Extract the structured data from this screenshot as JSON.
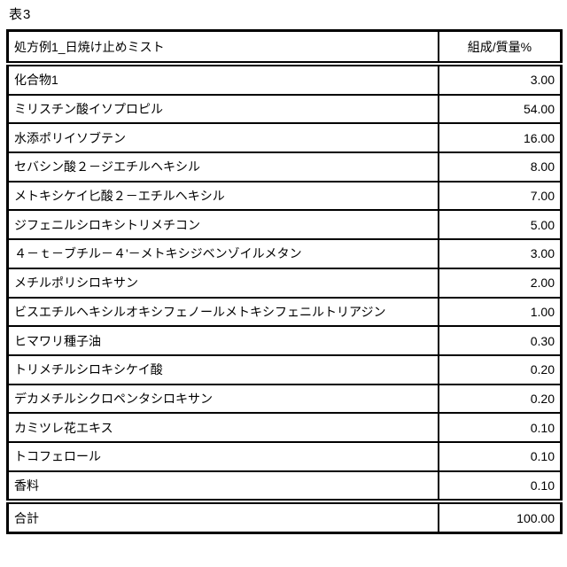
{
  "page": {
    "title": "表3"
  },
  "colors": {
    "background": "#ffffff",
    "text": "#000000",
    "border": "#000000"
  },
  "table": {
    "header": {
      "label": "処方例1_日焼け止めミスト",
      "value_label": "組成/質量%"
    },
    "rows": [
      {
        "name": "化合物1",
        "value": "3.00"
      },
      {
        "name": "ミリスチン酸イソプロピル",
        "value": "54.00"
      },
      {
        "name": "水添ポリイソブテン",
        "value": "16.00"
      },
      {
        "name": "セバシン酸２－ジエチルヘキシル",
        "value": "8.00"
      },
      {
        "name": "メトキシケイ匕酸２－エチルヘキシル",
        "value": "7.00"
      },
      {
        "name": "ジフェニルシロキシトリメチコン",
        "value": "5.00"
      },
      {
        "name": "４－ｔ－ブチル－４'－メトキシジベンゾイルメタン",
        "value": "3.00"
      },
      {
        "name": "メチルポリシロキサン",
        "value": "2.00"
      },
      {
        "name": "ビスエチルヘキシルオキシフェノールメトキシフェニルトリアジン",
        "value": "1.00"
      },
      {
        "name": "ヒマワリ種子油",
        "value": "0.30"
      },
      {
        "name": "トリメチルシロキシケイ酸",
        "value": "0.20"
      },
      {
        "name": "デカメチルシクロペンタシロキサン",
        "value": "0.20"
      },
      {
        "name": "カミツレ花エキス",
        "value": "0.10"
      },
      {
        "name": "トコフェロール",
        "value": "0.10"
      },
      {
        "name": "香料",
        "value": "0.10"
      }
    ],
    "total": {
      "name": "合計",
      "value": "100.00"
    }
  }
}
